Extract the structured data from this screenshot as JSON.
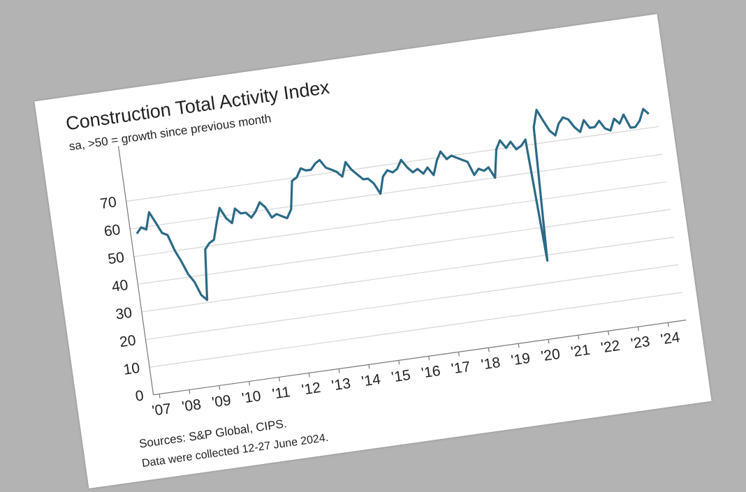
{
  "chart_data": {
    "type": "line",
    "title": "Construction Total Activity Index",
    "subtitle": "sa, >50 = growth since previous month",
    "sources": [
      "Sources: S&P Global, CIPS.",
      "Data were collected 12-27 June 2024."
    ],
    "color": "#2b6a86",
    "grid": true,
    "ylim": [
      0,
      90
    ],
    "yticks": [
      0,
      10,
      20,
      30,
      40,
      50,
      60,
      70
    ],
    "xlim": [
      2006.8,
      2024.6
    ],
    "xticks": [
      {
        "value": 2007,
        "label": "'07"
      },
      {
        "value": 2008,
        "label": "'08"
      },
      {
        "value": 2009,
        "label": "'09"
      },
      {
        "value": 2010,
        "label": "'10"
      },
      {
        "value": 2011,
        "label": "'11"
      },
      {
        "value": 2012,
        "label": "'12"
      },
      {
        "value": 2013,
        "label": "'13"
      },
      {
        "value": 2014,
        "label": "'14"
      },
      {
        "value": 2015,
        "label": "'15"
      },
      {
        "value": 2016,
        "label": "'16"
      },
      {
        "value": 2017,
        "label": "'17"
      },
      {
        "value": 2018,
        "label": "'18"
      },
      {
        "value": 2019,
        "label": "'19"
      },
      {
        "value": 2020,
        "label": "'20"
      },
      {
        "value": 2021,
        "label": "'21"
      },
      {
        "value": 2022,
        "label": "'22"
      },
      {
        "value": 2023,
        "label": "'23"
      },
      {
        "value": 2024,
        "label": "'24"
      }
    ],
    "x": [
      2007,
      2007.17,
      2007.33,
      2007.5,
      2007.67,
      2007.83,
      2008,
      2008.17,
      2008.33,
      2008.5,
      2008.67,
      2008.83,
      2009,
      2009.17,
      2009.33,
      2009.5,
      2009.67,
      2009.83,
      2010,
      2010.17,
      2010.33,
      2010.5,
      2010.67,
      2010.83,
      2011,
      2011.17,
      2011.33,
      2011.5,
      2011.67,
      2011.83,
      2012,
      2012.17,
      2012.33,
      2012.5,
      2012.67,
      2012.83,
      2013,
      2013.17,
      2013.33,
      2013.5,
      2013.67,
      2013.83,
      2014,
      2014.17,
      2014.33,
      2014.5,
      2014.67,
      2014.83,
      2015,
      2015.17,
      2015.33,
      2015.5,
      2015.67,
      2015.83,
      2016,
      2016.17,
      2016.33,
      2016.5,
      2016.67,
      2016.83,
      2017,
      2017.17,
      2017.33,
      2017.5,
      2017.67,
      2017.83,
      2018,
      2018.17,
      2018.33,
      2018.5,
      2018.67,
      2018.83,
      2019,
      2019.17,
      2019.33,
      2019.5,
      2019.67,
      2019.83,
      2020,
      2020.17,
      2020.33,
      2020.5,
      2020.67,
      2020.83,
      2021,
      2021.17,
      2021.33,
      2021.5,
      2021.67,
      2021.83,
      2022,
      2022.17,
      2022.33,
      2022.5,
      2022.67,
      2022.83,
      2023,
      2023.17,
      2023.33,
      2023.5,
      2023.67,
      2023.83,
      2024,
      2024.17,
      2024.33
    ],
    "values": [
      58,
      60,
      59,
      65,
      61,
      57,
      56,
      50,
      46,
      41,
      38,
      33,
      31,
      49,
      51,
      52,
      58,
      63,
      59,
      57,
      62,
      60,
      60,
      58,
      60,
      63,
      61,
      57,
      58,
      57,
      56,
      59,
      69,
      70,
      73,
      72,
      72,
      74,
      75,
      72,
      71,
      70,
      68,
      73,
      70,
      68,
      66,
      66,
      64,
      60,
      66,
      68,
      67,
      68,
      71,
      68,
      66,
      67,
      65,
      67,
      64,
      69,
      72,
      69,
      70,
      69,
      68,
      67,
      62,
      64,
      63,
      64,
      60,
      70,
      73,
      70,
      72,
      69,
      70,
      72,
      28,
      76,
      82,
      78,
      74,
      72,
      76,
      78,
      77,
      74,
      72,
      76,
      73,
      73,
      75,
      72,
      71,
      75,
      73,
      76,
      71,
      71,
      73,
      77,
      75
    ]
  }
}
